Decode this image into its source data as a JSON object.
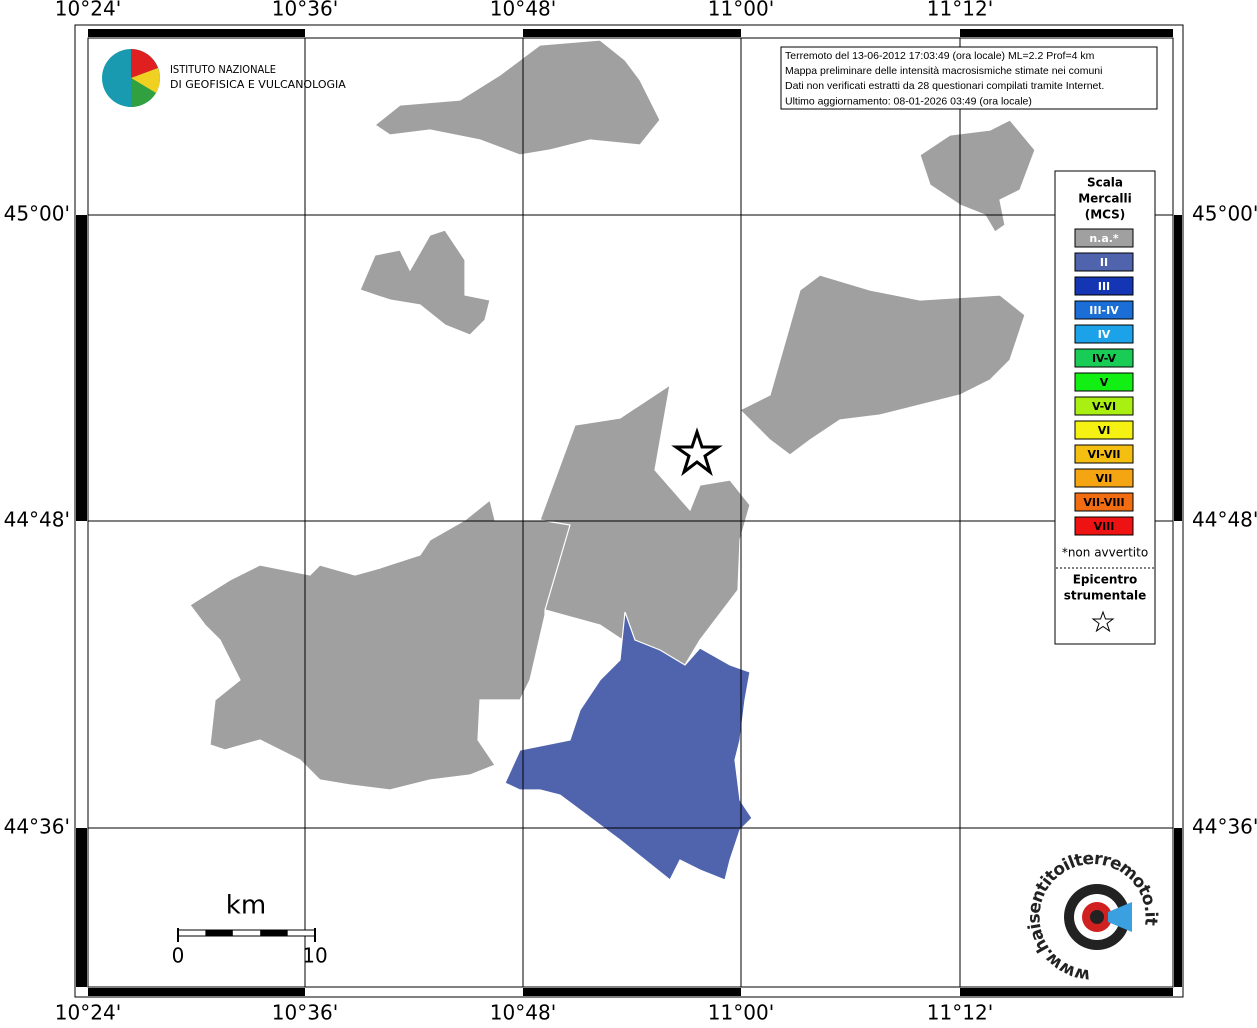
{
  "map": {
    "lon_labels": [
      "10°24'",
      "10°36'",
      "10°48'",
      "11°00'",
      "11°12'"
    ],
    "lat_labels": [
      "45°00'",
      "44°48'",
      "44°36'"
    ],
    "logo": {
      "line1": "ISTITUTO NAZIONALE",
      "line2": "DI GEOFISICA E VULCANOLOGIA"
    },
    "info": [
      "Terremoto del 13-06-2012 17:03:49 (ora locale) ML=2.2 Prof=4 km",
      "Mappa preliminare delle intensità macrosismiche stimate nei comuni",
      "Dati non verificati estratti da 28 questionari compilati tramite Internet.",
      "Ultimo aggiornamento: 08-01-2026 03:49 (ora locale)"
    ],
    "legend": {
      "title": [
        "Scala",
        "Mercalli",
        "(MCS)"
      ],
      "items": [
        {
          "label": "n.a.*",
          "color": "#a0a0a0",
          "text_color": "#ffffff"
        },
        {
          "label": "II",
          "color": "#4f64ad",
          "text_color": "#ffffff"
        },
        {
          "label": "III",
          "color": "#1436b4",
          "text_color": "#ffffff"
        },
        {
          "label": "III-IV",
          "color": "#1a6ed6",
          "text_color": "#ffffff"
        },
        {
          "label": "IV",
          "color": "#1ba2e8",
          "text_color": "#ffffff"
        },
        {
          "label": "IV-V",
          "color": "#19cc55",
          "text_color": "#000000"
        },
        {
          "label": "V",
          "color": "#12ef12",
          "text_color": "#000000"
        },
        {
          "label": "V-VI",
          "color": "#a9ef12",
          "text_color": "#000000"
        },
        {
          "label": "VI",
          "color": "#f5f112",
          "text_color": "#000000"
        },
        {
          "label": "VI-VII",
          "color": "#f5bf12",
          "text_color": "#000000"
        },
        {
          "label": "VII",
          "color": "#f5a412",
          "text_color": "#000000"
        },
        {
          "label": "VII-VIII",
          "color": "#f26c12",
          "text_color": "#000000"
        },
        {
          "label": "VIII",
          "color": "#ee1212",
          "text_color": "#000000"
        }
      ],
      "note": "*non avvertito",
      "epicenter": [
        "Epicentro",
        "strumentale"
      ]
    },
    "scale": {
      "unit": "km",
      "start": "0",
      "end": "10"
    },
    "badge": "www.haisentitoilterremoto.it"
  }
}
